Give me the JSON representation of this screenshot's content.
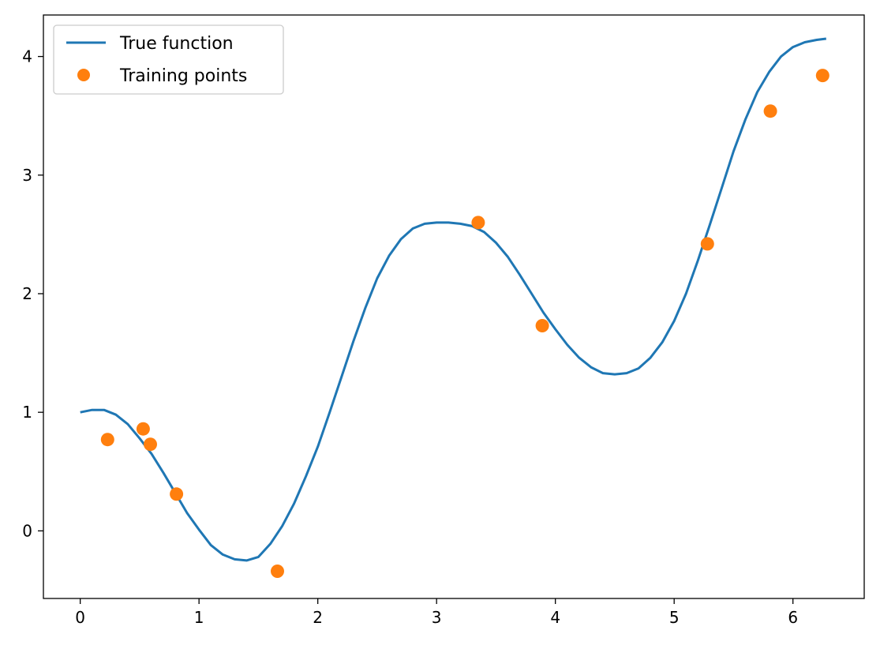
{
  "chart_data": {
    "type": "line",
    "title": "",
    "xlabel": "",
    "ylabel": "",
    "xlim": [
      -0.31,
      6.6
    ],
    "ylim": [
      -0.57,
      4.35
    ],
    "x_ticks": [
      0,
      1,
      2,
      3,
      4,
      5,
      6
    ],
    "y_ticks": [
      0,
      1,
      2,
      3,
      4
    ],
    "grid": false,
    "legend": {
      "placement": "top-left"
    },
    "series": [
      {
        "name": "True function",
        "kind": "line",
        "color": "#1f77b4",
        "x": [
          0,
          0.1,
          0.2,
          0.3,
          0.4,
          0.5,
          0.6,
          0.7,
          0.8,
          0.9,
          1.0,
          1.1,
          1.2,
          1.3,
          1.4,
          1.5,
          1.6,
          1.7,
          1.8,
          1.9,
          2.0,
          2.1,
          2.2,
          2.3,
          2.4,
          2.5,
          2.6,
          2.7,
          2.8,
          2.9,
          3.0,
          3.1,
          3.2,
          3.3,
          3.4,
          3.5,
          3.6,
          3.7,
          3.8,
          3.9,
          4.0,
          4.1,
          4.2,
          4.3,
          4.4,
          4.5,
          4.6,
          4.7,
          4.8,
          4.9,
          5.0,
          5.1,
          5.2,
          5.3,
          5.4,
          5.5,
          5.6,
          5.7,
          5.8,
          5.9,
          6.0,
          6.1,
          6.2,
          6.28
        ],
        "y": [
          1.0,
          1.02,
          1.02,
          0.98,
          0.9,
          0.78,
          0.65,
          0.49,
          0.32,
          0.15,
          0.01,
          -0.12,
          -0.2,
          -0.24,
          -0.25,
          -0.22,
          -0.11,
          0.04,
          0.23,
          0.46,
          0.71,
          1.0,
          1.3,
          1.6,
          1.88,
          2.13,
          2.32,
          2.46,
          2.55,
          2.59,
          2.6,
          2.6,
          2.59,
          2.57,
          2.52,
          2.43,
          2.31,
          2.16,
          2.0,
          1.84,
          1.7,
          1.57,
          1.46,
          1.38,
          1.33,
          1.32,
          1.33,
          1.37,
          1.46,
          1.59,
          1.77,
          2.0,
          2.28,
          2.58,
          2.89,
          3.2,
          3.47,
          3.7,
          3.87,
          4.0,
          4.08,
          4.12,
          4.14,
          4.15
        ]
      },
      {
        "name": "Training points",
        "kind": "scatter",
        "color": "#ff7f0e",
        "x": [
          0.23,
          0.53,
          0.59,
          0.81,
          1.66,
          3.35,
          3.89,
          5.28,
          5.81,
          6.25
        ],
        "y": [
          0.77,
          0.86,
          0.73,
          0.31,
          -0.34,
          2.6,
          1.73,
          2.42,
          3.54,
          3.84
        ]
      }
    ]
  }
}
